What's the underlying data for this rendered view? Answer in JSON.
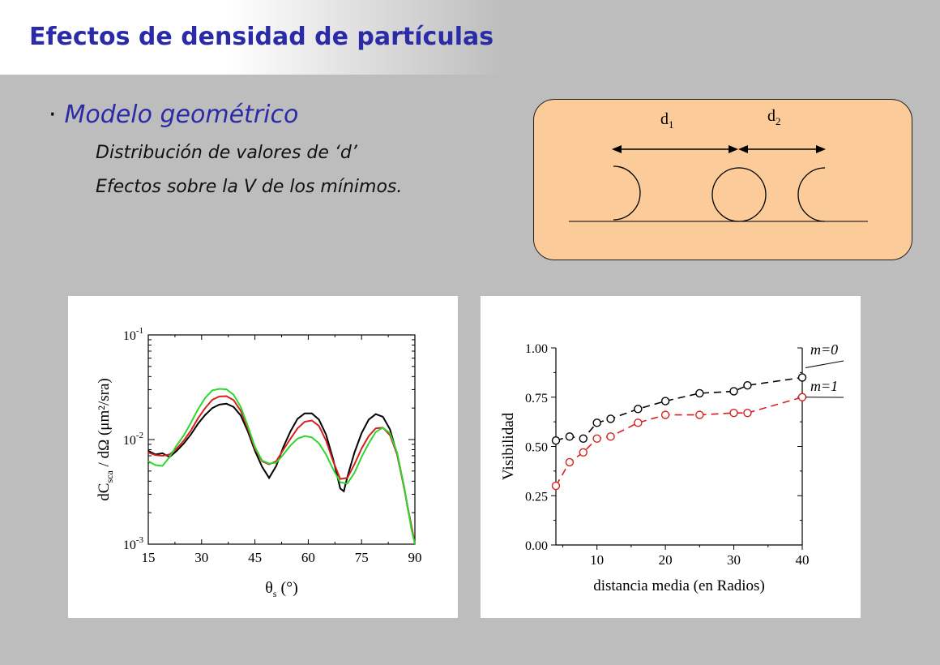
{
  "slide": {
    "title": "Efectos de densidad de partículas",
    "bullet": "Modelo geométrico",
    "lines": [
      "Distribución de valores de ‘d’",
      "Efectos sobre la V de los mínimos."
    ]
  },
  "diagram": {
    "d1_main": "d",
    "d1_sub": "1",
    "d2_main": "d",
    "d2_sub": "2"
  },
  "chart_data": [
    {
      "type": "line",
      "xlabel_main": "θ",
      "xlabel_sub": "s",
      "xlabel_unit": "(°)",
      "ylabel": "dC / dΩ",
      "ylabel_sub": "sca",
      "ylabel_unit": "(μm²/sra)",
      "xlim": [
        15,
        90
      ],
      "ylim": [
        0.001,
        0.1
      ],
      "yscale": "log",
      "xticks": [
        "15",
        "30",
        "45",
        "60",
        "75",
        "90"
      ],
      "yticks": [
        {
          "base": "10",
          "exp": "-3",
          "v": 0.001
        },
        {
          "base": "10",
          "exp": "-2",
          "v": 0.01
        },
        {
          "base": "10",
          "exp": "-1",
          "v": 0.1
        }
      ],
      "series": [
        {
          "color": "#000000",
          "x": [
            15,
            17,
            19,
            21,
            23,
            25,
            27,
            29,
            31,
            33,
            35,
            37,
            39,
            41,
            43,
            45,
            47,
            49,
            51,
            53,
            55,
            57,
            59,
            61,
            63,
            65,
            67,
            69,
            70,
            71,
            73,
            75,
            77,
            79,
            81,
            83,
            85,
            87,
            88,
            89,
            90
          ],
          "y": [
            0.0078,
            0.0072,
            0.0074,
            0.0068,
            0.0078,
            0.0092,
            0.0112,
            0.0142,
            0.0172,
            0.02,
            0.0216,
            0.022,
            0.0205,
            0.017,
            0.012,
            0.0078,
            0.0055,
            0.0043,
            0.0056,
            0.0085,
            0.012,
            0.0158,
            0.0178,
            0.0178,
            0.0155,
            0.0112,
            0.0065,
            0.0034,
            0.0032,
            0.0044,
            0.0075,
            0.0115,
            0.0155,
            0.0175,
            0.0165,
            0.0125,
            0.0072,
            0.0035,
            0.0022,
            0.0015,
            0.001
          ]
        },
        {
          "color": "#d62020",
          "x": [
            15,
            17,
            19,
            21,
            23,
            25,
            27,
            29,
            31,
            33,
            35,
            37,
            39,
            41,
            43,
            45,
            47,
            49,
            51,
            53,
            55,
            57,
            59,
            61,
            63,
            65,
            67,
            69,
            71,
            73,
            75,
            77,
            79,
            81,
            83,
            85,
            87,
            89,
            90
          ],
          "y": [
            0.0075,
            0.0071,
            0.007,
            0.0072,
            0.0082,
            0.0098,
            0.0122,
            0.016,
            0.02,
            0.024,
            0.0258,
            0.026,
            0.0238,
            0.0188,
            0.0128,
            0.0082,
            0.0062,
            0.0058,
            0.0062,
            0.008,
            0.0102,
            0.0128,
            0.0148,
            0.0152,
            0.0135,
            0.0098,
            0.0062,
            0.0042,
            0.0043,
            0.0058,
            0.0082,
            0.0108,
            0.0128,
            0.013,
            0.011,
            0.0072,
            0.0034,
            0.0015,
            0.001
          ]
        },
        {
          "color": "#2ed62e",
          "x": [
            15,
            17,
            19,
            21,
            23,
            25,
            27,
            29,
            31,
            33,
            35,
            37,
            39,
            41,
            43,
            45,
            47,
            49,
            51,
            53,
            55,
            57,
            59,
            61,
            63,
            65,
            67,
            69,
            71,
            73,
            75,
            77,
            79,
            81,
            83,
            85,
            87,
            89,
            90
          ],
          "y": [
            0.0062,
            0.0057,
            0.0056,
            0.0068,
            0.0088,
            0.011,
            0.0145,
            0.0195,
            0.025,
            0.0295,
            0.0305,
            0.0302,
            0.0268,
            0.0205,
            0.0135,
            0.0085,
            0.0063,
            0.0059,
            0.006,
            0.0072,
            0.0088,
            0.0102,
            0.0108,
            0.0105,
            0.0092,
            0.0072,
            0.0052,
            0.0039,
            0.0038,
            0.0048,
            0.0068,
            0.0092,
            0.0118,
            0.013,
            0.0115,
            0.0075,
            0.0035,
            0.0014,
            0.001
          ]
        }
      ]
    },
    {
      "type": "scatter",
      "xlabel": "distancia media (en Radios)",
      "ylabel": "Visibilidad",
      "xlim": [
        4,
        40
      ],
      "ylim": [
        0,
        1
      ],
      "xticks": [
        "10",
        "20",
        "30",
        "40"
      ],
      "yticks": [
        "0.00",
        "0.25",
        "0.50",
        "0.75",
        "1.00"
      ],
      "series": [
        {
          "name": "m=0",
          "color": "#000000",
          "x": [
            4,
            6,
            8,
            10,
            12,
            16,
            20,
            25,
            30,
            32,
            40
          ],
          "y": [
            0.53,
            0.55,
            0.54,
            0.62,
            0.64,
            0.69,
            0.73,
            0.77,
            0.78,
            0.81,
            0.85
          ]
        },
        {
          "name": "m=1",
          "color": "#d62020",
          "x": [
            4,
            6,
            8,
            10,
            12,
            16,
            20,
            25,
            30,
            32,
            40
          ],
          "y": [
            0.3,
            0.42,
            0.47,
            0.54,
            0.55,
            0.62,
            0.66,
            0.66,
            0.67,
            0.67,
            0.75
          ]
        }
      ]
    }
  ]
}
